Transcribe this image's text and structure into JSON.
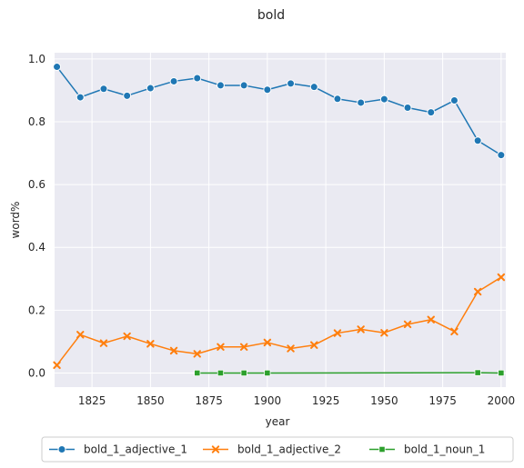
{
  "chart_data": {
    "type": "line",
    "title": "bold",
    "xlabel": "year",
    "ylabel": "word%",
    "xlim": [
      1809,
      2002
    ],
    "ylim": [
      -0.045,
      1.02
    ],
    "xticks": [
      1825,
      1850,
      1875,
      1900,
      1925,
      1950,
      1975,
      2000
    ],
    "yticks": [
      0.0,
      0.2,
      0.4,
      0.6,
      0.8,
      1.0
    ],
    "xtick_labels": [
      "1825",
      "1850",
      "1875",
      "1900",
      "1925",
      "1950",
      "1975",
      "2000"
    ],
    "ytick_labels": [
      "0.0",
      "0.2",
      "0.4",
      "0.6",
      "0.8",
      "1.0"
    ],
    "grid": true,
    "legend_position": "bottom",
    "background": "#eaeaf2",
    "series": [
      {
        "name": "bold_1_adjective_1",
        "color": "#1f77b4",
        "marker": "circle",
        "x": [
          1810,
          1820,
          1830,
          1840,
          1850,
          1860,
          1870,
          1880,
          1890,
          1900,
          1910,
          1920,
          1930,
          1940,
          1950,
          1960,
          1970,
          1980,
          1990,
          2000
        ],
        "y": [
          0.975,
          0.878,
          0.905,
          0.883,
          0.907,
          0.929,
          0.939,
          0.916,
          0.916,
          0.902,
          0.922,
          0.911,
          0.873,
          0.861,
          0.872,
          0.845,
          0.83,
          0.868,
          0.74,
          0.694
        ]
      },
      {
        "name": "bold_1_adjective_2",
        "color": "#ff7f0e",
        "marker": "x",
        "x": [
          1810,
          1820,
          1830,
          1840,
          1850,
          1860,
          1870,
          1880,
          1890,
          1900,
          1910,
          1920,
          1930,
          1940,
          1950,
          1960,
          1970,
          1980,
          1990,
          2000
        ],
        "y": [
          0.025,
          0.122,
          0.095,
          0.117,
          0.093,
          0.071,
          0.061,
          0.083,
          0.083,
          0.097,
          0.078,
          0.089,
          0.127,
          0.139,
          0.128,
          0.155,
          0.17,
          0.132,
          0.259,
          0.305
        ]
      },
      {
        "name": "bold_1_noun_1",
        "color": "#2ca02c",
        "marker": "square",
        "x": [
          1870,
          1880,
          1890,
          1900,
          1990,
          2000
        ],
        "y": [
          0.0,
          0.0,
          0.0,
          0.0,
          0.001,
          0.0
        ]
      }
    ]
  }
}
